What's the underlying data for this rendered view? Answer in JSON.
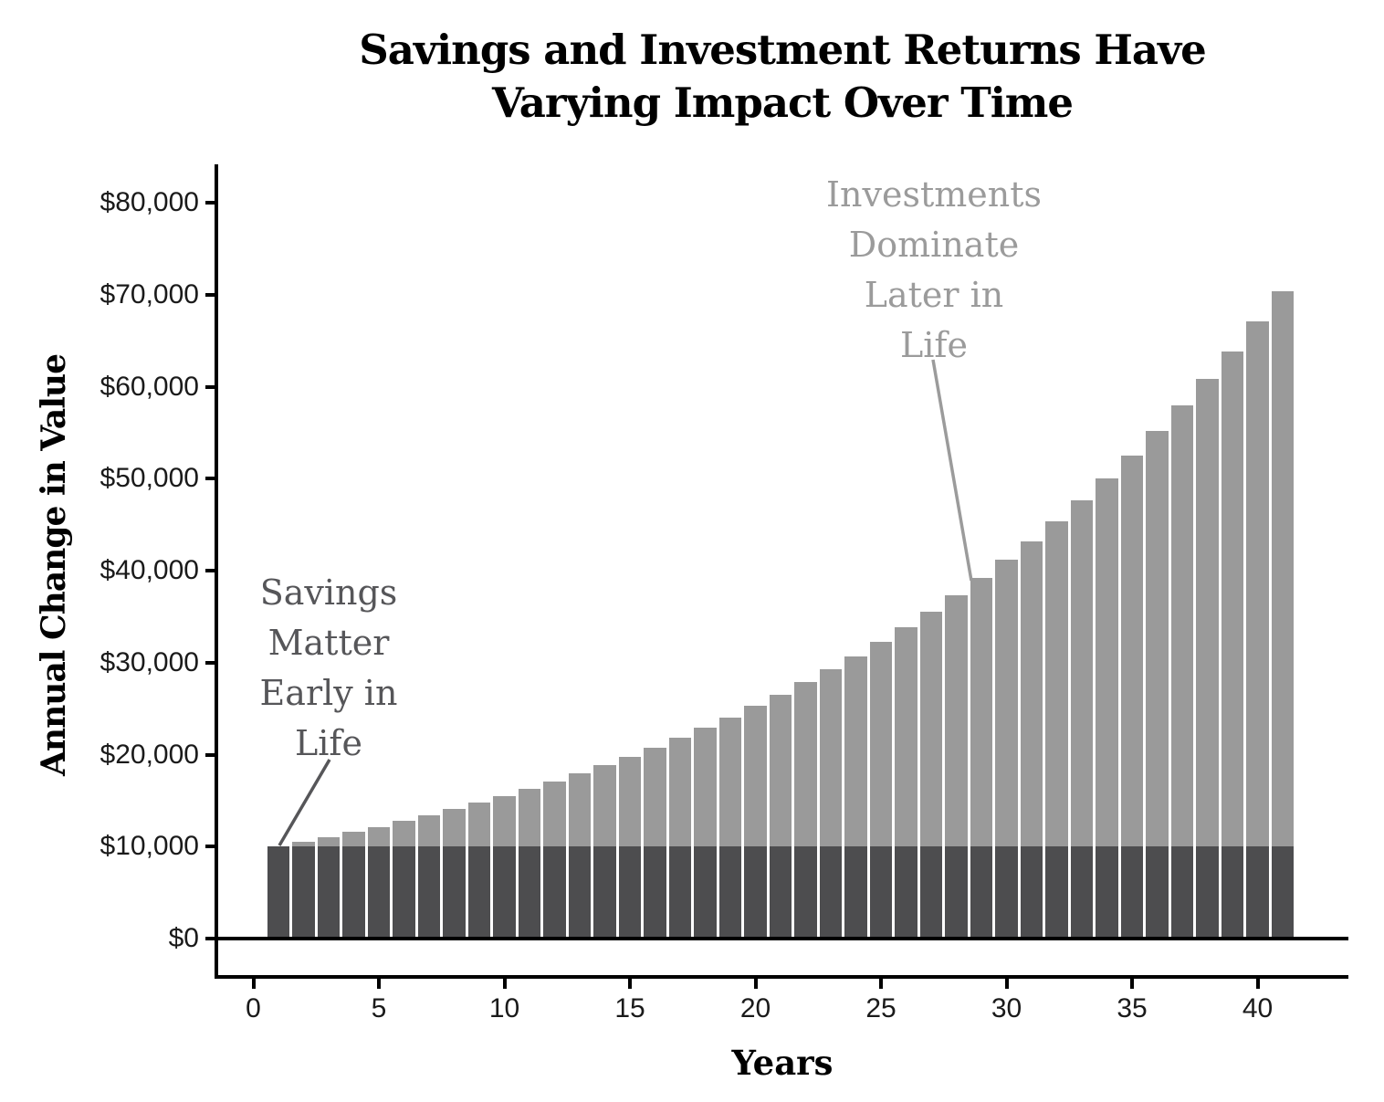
{
  "title": {
    "lines": [
      "Savings and Investment Returns Have",
      "Varying Impact Over Time"
    ]
  },
  "axes": {
    "y": {
      "title": "Annual Change in Value",
      "ticks": [
        {
          "value": 0,
          "label": "$0"
        },
        {
          "value": 10000,
          "label": "$10,000"
        },
        {
          "value": 20000,
          "label": "$20,000"
        },
        {
          "value": 30000,
          "label": "$30,000"
        },
        {
          "value": 40000,
          "label": "$40,000"
        },
        {
          "value": 50000,
          "label": "$50,000"
        },
        {
          "value": 60000,
          "label": "$60,000"
        },
        {
          "value": 70000,
          "label": "$70,000"
        },
        {
          "value": 80000,
          "label": "$80,000"
        }
      ]
    },
    "x": {
      "title": "Years",
      "ticks": [
        {
          "value": 0,
          "label": "0"
        },
        {
          "value": 5,
          "label": "5"
        },
        {
          "value": 10,
          "label": "10"
        },
        {
          "value": 15,
          "label": "15"
        },
        {
          "value": 20,
          "label": "20"
        },
        {
          "value": 25,
          "label": "25"
        },
        {
          "value": 30,
          "label": "30"
        },
        {
          "value": 35,
          "label": "35"
        },
        {
          "value": 40,
          "label": "40"
        }
      ]
    }
  },
  "annotations": {
    "savings": {
      "lines": [
        "Savings",
        "Matter",
        "Early in",
        "Life"
      ],
      "color": "#565659"
    },
    "investments": {
      "lines": [
        "Investments",
        "Dominate",
        "Later in",
        "Life"
      ],
      "color": "#9b9b9b"
    }
  },
  "colors": {
    "savings_bar": "#4d4d4f",
    "investment_bar": "#9a9a9a",
    "axis": "#000000",
    "background": "#ffffff"
  },
  "chart_data": {
    "type": "bar",
    "stacked": true,
    "title": "Savings and Investment Returns Have Varying Impact Over Time",
    "xlabel": "Years",
    "ylabel": "Annual Change in Value",
    "ylim": [
      0,
      80000
    ],
    "xlim": [
      0,
      43.6
    ],
    "yticks": [
      0,
      10000,
      20000,
      30000,
      40000,
      50000,
      60000,
      70000,
      80000
    ],
    "xticks": [
      0,
      5,
      10,
      15,
      20,
      25,
      30,
      35,
      40
    ],
    "grid": false,
    "legend": "none",
    "x": [
      1,
      2,
      3,
      4,
      5,
      6,
      7,
      8,
      9,
      10,
      11,
      12,
      13,
      14,
      15,
      16,
      17,
      18,
      19,
      20,
      21,
      22,
      23,
      24,
      25,
      26,
      27,
      28,
      29,
      30,
      31,
      32,
      33,
      34,
      35,
      36,
      37,
      38,
      39,
      40,
      41
    ],
    "series": [
      {
        "name": "Savings",
        "color": "#4d4d4f",
        "values": [
          10000,
          10000,
          10000,
          10000,
          10000,
          10000,
          10000,
          10000,
          10000,
          10000,
          10000,
          10000,
          10000,
          10000,
          10000,
          10000,
          10000,
          10000,
          10000,
          10000,
          10000,
          10000,
          10000,
          10000,
          10000,
          10000,
          10000,
          10000,
          10000,
          10000,
          10000,
          10000,
          10000,
          10000,
          10000,
          10000,
          10000,
          10000,
          10000,
          10000,
          10000
        ]
      },
      {
        "name": "Investment Returns",
        "color": "#9a9a9a",
        "values": [
          0,
          500,
          1025,
          1576,
          2155,
          2763,
          3401,
          4071,
          4775,
          5513,
          6289,
          7103,
          7959,
          8856,
          9799,
          10789,
          11829,
          12920,
          14066,
          15270,
          16533,
          17860,
          19253,
          20715,
          22251,
          23864,
          25557,
          27335,
          29201,
          31161,
          33219,
          35380,
          37649,
          40032,
          42533,
          45160,
          47918,
          50814,
          53855,
          57048,
          60400
        ]
      }
    ],
    "bar_totals": [
      10000,
      10500,
      11025,
      11576,
      12155,
      12763,
      13401,
      14071,
      14775,
      15513,
      16289,
      17103,
      17959,
      18856,
      19799,
      20789,
      21829,
      22920,
      24066,
      25270,
      26533,
      27860,
      29253,
      30715,
      32251,
      33864,
      35557,
      37335,
      39201,
      41161,
      43219,
      45380,
      47649,
      50032,
      52533,
      55160,
      57918,
      60814,
      63855,
      67048,
      70400
    ]
  }
}
